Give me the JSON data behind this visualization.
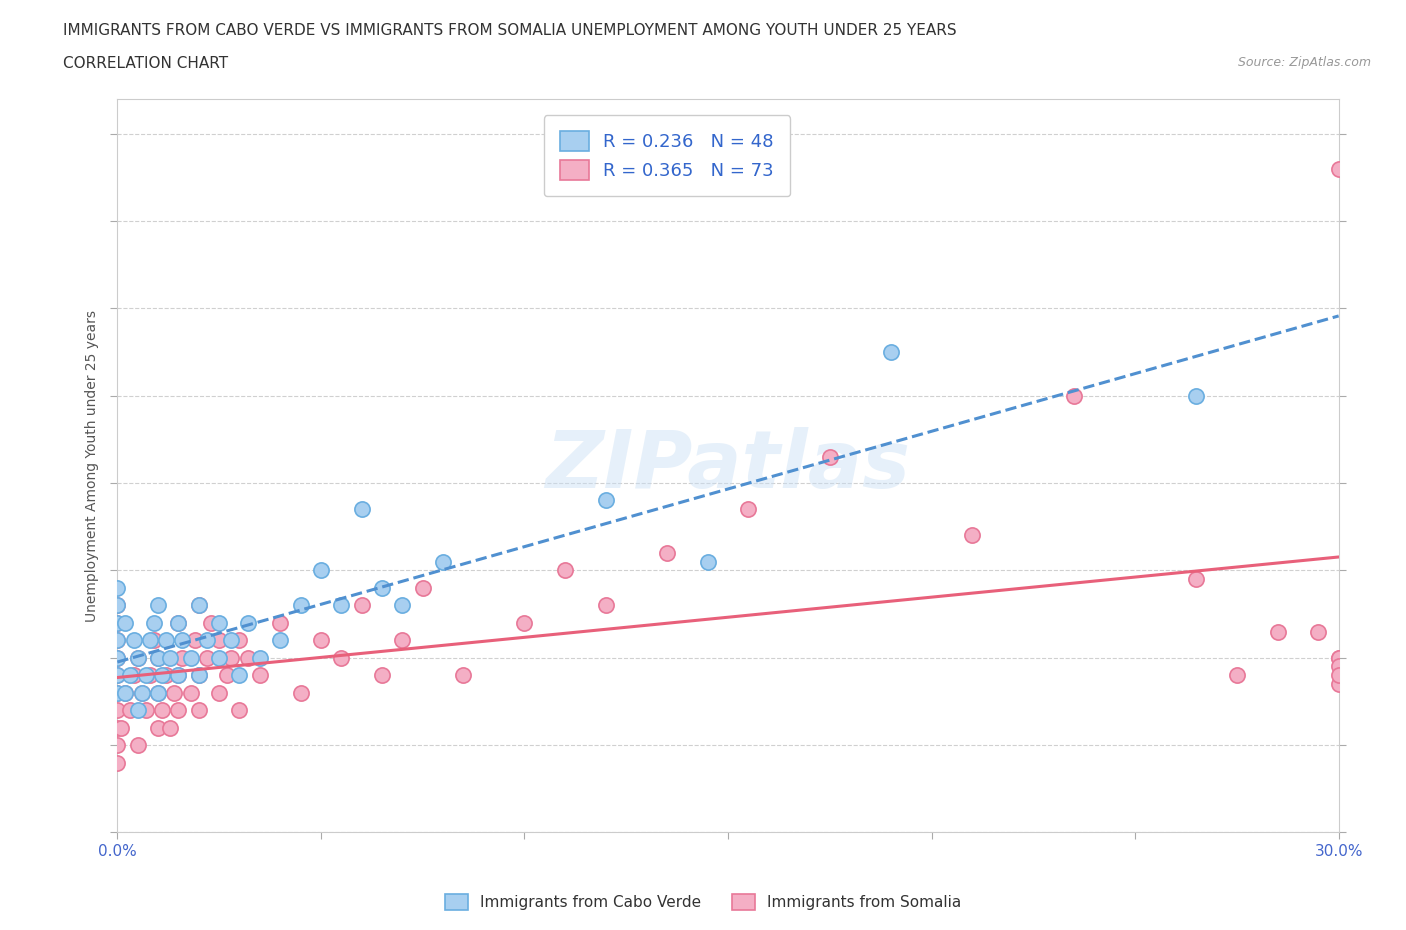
{
  "title_line1": "IMMIGRANTS FROM CABO VERDE VS IMMIGRANTS FROM SOMALIA UNEMPLOYMENT AMONG YOUTH UNDER 25 YEARS",
  "title_line2": "CORRELATION CHART",
  "source_text": "Source: ZipAtlas.com",
  "ylabel": "Unemployment Among Youth under 25 years",
  "xlim": [
    0.0,
    0.3
  ],
  "ylim": [
    0.0,
    0.42
  ],
  "x_ticks": [
    0.0,
    0.05,
    0.1,
    0.15,
    0.2,
    0.25,
    0.3
  ],
  "y_ticks": [
    0.0,
    0.05,
    0.1,
    0.15,
    0.2,
    0.25,
    0.3,
    0.35,
    0.4
  ],
  "cabo_verde_R": 0.236,
  "cabo_verde_N": 48,
  "somalia_R": 0.365,
  "somalia_N": 73,
  "cabo_verde_color": "#a8cff0",
  "somalia_color": "#f4afc5",
  "cabo_verde_edge_color": "#6aaee0",
  "somalia_edge_color": "#e87898",
  "cabo_verde_trend_color": "#5090d0",
  "somalia_trend_color": "#e8607a",
  "background_color": "#ffffff",
  "watermark": "ZIPatlas",
  "legend_R_N_color": "#3366cc",
  "tick_color": "#4466cc",
  "cabo_verde_scatter_x": [
    0.0,
    0.0,
    0.0,
    0.0,
    0.0,
    0.0,
    0.0,
    0.002,
    0.002,
    0.003,
    0.004,
    0.005,
    0.005,
    0.006,
    0.007,
    0.008,
    0.009,
    0.01,
    0.01,
    0.01,
    0.011,
    0.012,
    0.013,
    0.015,
    0.015,
    0.016,
    0.018,
    0.02,
    0.02,
    0.022,
    0.025,
    0.025,
    0.028,
    0.03,
    0.032,
    0.035,
    0.04,
    0.045,
    0.05,
    0.055,
    0.06,
    0.065,
    0.07,
    0.08,
    0.12,
    0.145,
    0.19,
    0.265
  ],
  "cabo_verde_scatter_y": [
    0.08,
    0.09,
    0.1,
    0.11,
    0.12,
    0.13,
    0.14,
    0.08,
    0.12,
    0.09,
    0.11,
    0.07,
    0.1,
    0.08,
    0.09,
    0.11,
    0.12,
    0.08,
    0.1,
    0.13,
    0.09,
    0.11,
    0.1,
    0.09,
    0.12,
    0.11,
    0.1,
    0.09,
    0.13,
    0.11,
    0.1,
    0.12,
    0.11,
    0.09,
    0.12,
    0.1,
    0.11,
    0.13,
    0.15,
    0.13,
    0.185,
    0.14,
    0.13,
    0.155,
    0.19,
    0.155,
    0.275,
    0.25
  ],
  "somalia_scatter_x": [
    0.0,
    0.0,
    0.0,
    0.0,
    0.0,
    0.0,
    0.0,
    0.0,
    0.0,
    0.0,
    0.001,
    0.002,
    0.003,
    0.004,
    0.005,
    0.005,
    0.006,
    0.007,
    0.008,
    0.009,
    0.01,
    0.01,
    0.01,
    0.011,
    0.012,
    0.013,
    0.014,
    0.015,
    0.015,
    0.015,
    0.016,
    0.018,
    0.019,
    0.02,
    0.02,
    0.02,
    0.022,
    0.023,
    0.025,
    0.025,
    0.027,
    0.028,
    0.03,
    0.03,
    0.032,
    0.035,
    0.04,
    0.045,
    0.05,
    0.055,
    0.06,
    0.065,
    0.07,
    0.075,
    0.085,
    0.1,
    0.11,
    0.12,
    0.135,
    0.155,
    0.175,
    0.21,
    0.235,
    0.265,
    0.275,
    0.285,
    0.295,
    0.3,
    0.3,
    0.3,
    0.3,
    0.3,
    0.3
  ],
  "somalia_scatter_y": [
    0.04,
    0.05,
    0.06,
    0.07,
    0.08,
    0.09,
    0.1,
    0.11,
    0.12,
    0.13,
    0.06,
    0.08,
    0.07,
    0.09,
    0.05,
    0.1,
    0.08,
    0.07,
    0.09,
    0.11,
    0.06,
    0.08,
    0.1,
    0.07,
    0.09,
    0.06,
    0.08,
    0.07,
    0.09,
    0.12,
    0.1,
    0.08,
    0.11,
    0.07,
    0.09,
    0.13,
    0.1,
    0.12,
    0.08,
    0.11,
    0.09,
    0.1,
    0.07,
    0.11,
    0.1,
    0.09,
    0.12,
    0.08,
    0.11,
    0.1,
    0.13,
    0.09,
    0.11,
    0.14,
    0.09,
    0.12,
    0.15,
    0.13,
    0.16,
    0.185,
    0.215,
    0.17,
    0.25,
    0.145,
    0.09,
    0.115,
    0.115,
    0.085,
    0.1,
    0.1,
    0.095,
    0.09,
    0.38
  ],
  "title_fontsize": 11,
  "subtitle_fontsize": 11,
  "axis_label_fontsize": 10,
  "tick_fontsize": 11,
  "legend_fontsize": 13
}
